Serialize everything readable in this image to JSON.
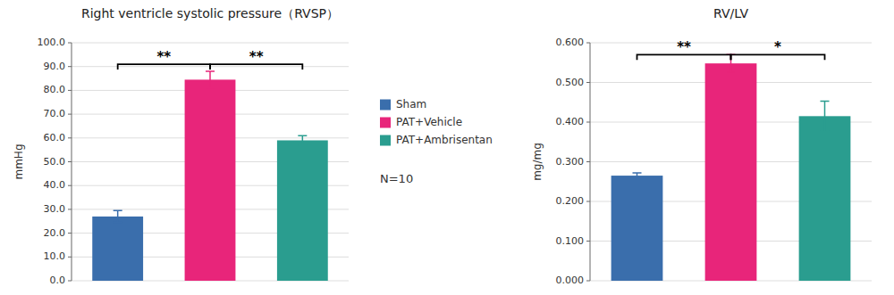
{
  "chart_data": [
    {
      "type": "bar",
      "title": "Right ventricle systolic pressure（RVSP）",
      "ylabel": "mmHg",
      "categories": [
        "Sham",
        "PAT+Vehicle",
        "PAT+Ambrisentan"
      ],
      "values": [
        27.0,
        84.5,
        59.0
      ],
      "errors": [
        2.5,
        3.5,
        2.0
      ],
      "colors": [
        "#3A6EAC",
        "#E8257A",
        "#2A9D8F"
      ],
      "ylim": [
        0,
        100
      ],
      "yticks": [
        {
          "value": 0,
          "label": "0.0"
        },
        {
          "value": 10,
          "label": "10.0"
        },
        {
          "value": 20,
          "label": "20.0"
        },
        {
          "value": 30,
          "label": "30.0"
        },
        {
          "value": 40,
          "label": "40.0"
        },
        {
          "value": 50,
          "label": "50.0"
        },
        {
          "value": 60,
          "label": "60.0"
        },
        {
          "value": 70,
          "label": "70.0"
        },
        {
          "value": 80,
          "label": "80.0"
        },
        {
          "value": 90,
          "label": "90.0"
        },
        {
          "value": 100,
          "label": "100.0"
        }
      ],
      "grid": true,
      "tick_labels": "y",
      "legend": "right",
      "significance": [
        {
          "from": "Sham",
          "to": "PAT+Vehicle",
          "label": "**",
          "y": 91.0
        },
        {
          "from": "PAT+Vehicle",
          "to": "PAT+Ambrisentan",
          "label": "**",
          "y": 91.0
        }
      ],
      "annotations": [
        "N=10"
      ]
    },
    {
      "type": "bar",
      "title": "RV/LV",
      "ylabel": "mg/mg",
      "categories": [
        "Sham",
        "PAT+Vehicle",
        "PAT+Ambrisentan"
      ],
      "values": [
        0.265,
        0.548,
        0.415
      ],
      "errors": [
        0.007,
        0.022,
        0.038
      ],
      "colors": [
        "#3A6EAC",
        "#E8257A",
        "#2A9D8F"
      ],
      "ylim": [
        0,
        0.6
      ],
      "yticks": [
        {
          "value": 0,
          "label": "0.000"
        },
        {
          "value": 0.1,
          "label": "0.100"
        },
        {
          "value": 0.2,
          "label": "0.200"
        },
        {
          "value": 0.3,
          "label": "0.300"
        },
        {
          "value": 0.4,
          "label": "0.400"
        },
        {
          "value": 0.5,
          "label": "0.500"
        },
        {
          "value": 0.6,
          "label": "0.600"
        }
      ],
      "grid": true,
      "tick_labels": "y",
      "significance": [
        {
          "from": "Sham",
          "to": "PAT+Vehicle",
          "label": "**",
          "y": 0.57
        },
        {
          "from": "PAT+Vehicle",
          "to": "PAT+Ambrisentan",
          "label": "*",
          "y": 0.57
        }
      ]
    }
  ]
}
